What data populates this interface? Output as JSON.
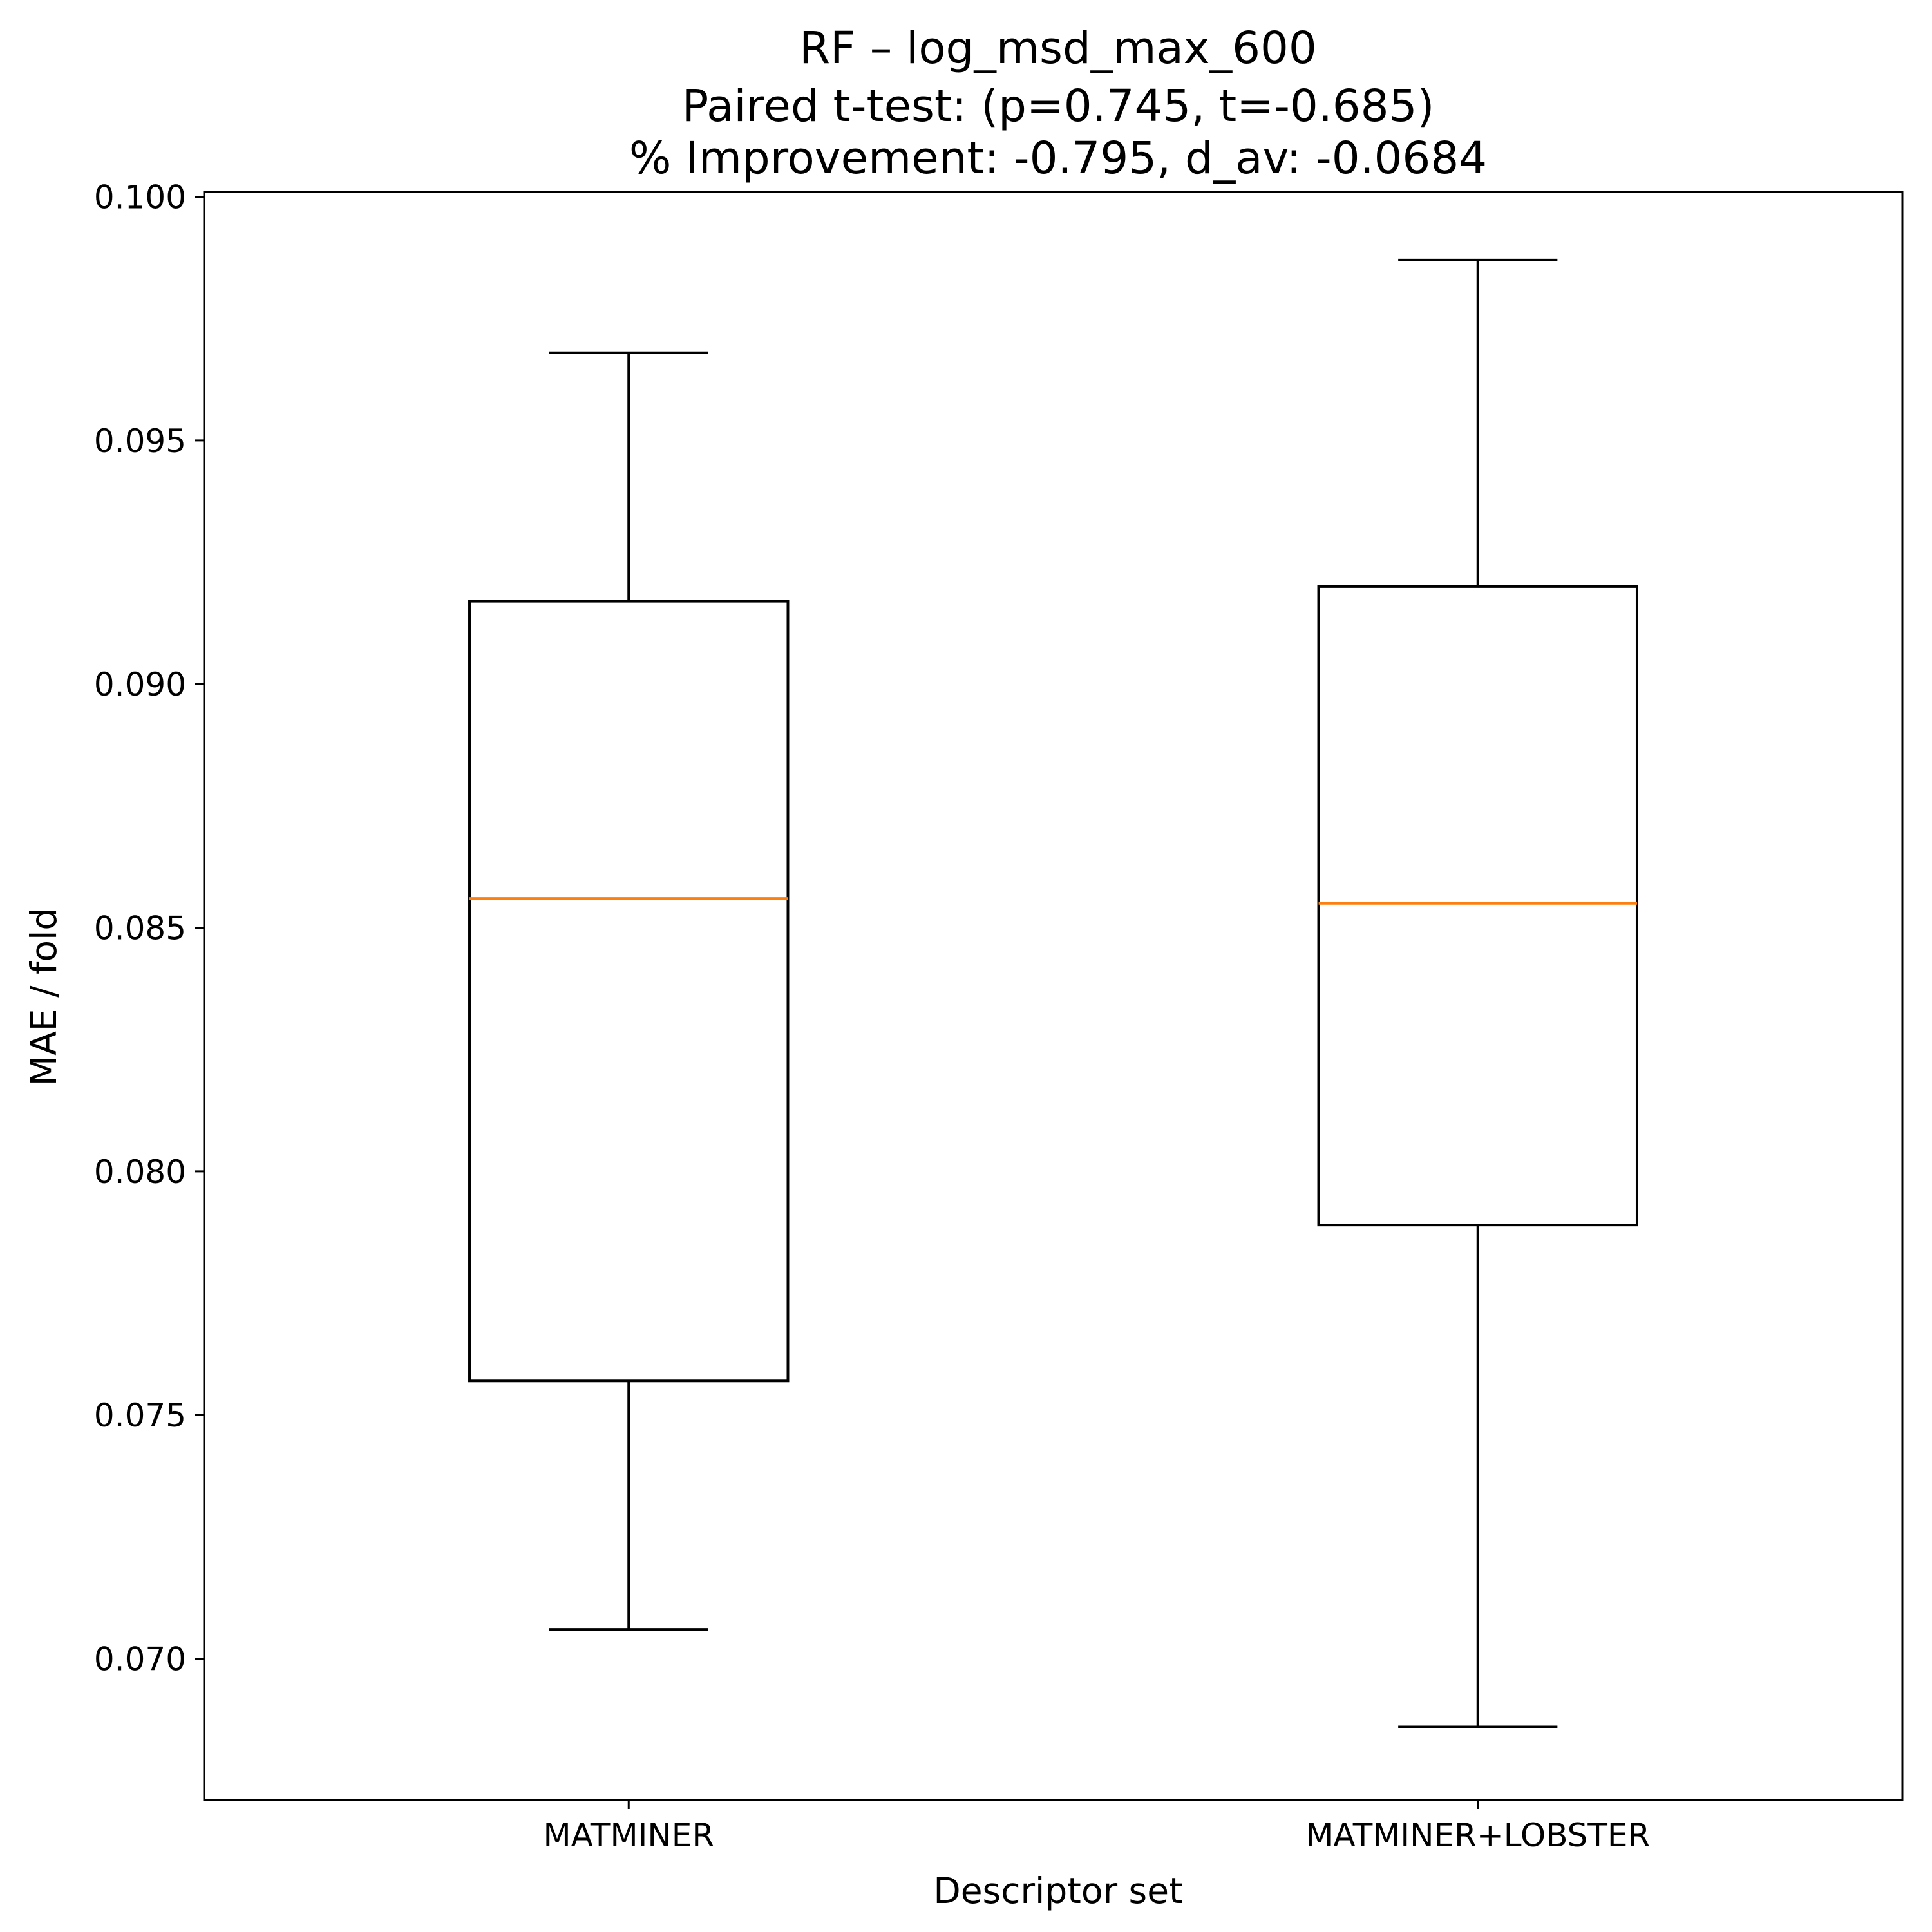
{
  "chart_data": {
    "type": "box",
    "title": "RF – log_msd_max_600",
    "subtitle_lines": [
      "Paired t-test: (p=0.745, t=-0.685)",
      "% Improvement: -0.795, d_av: -0.0684"
    ],
    "xlabel": "Descriptor set",
    "ylabel": "MAE / fold",
    "categories": [
      "MATMINER",
      "MATMINER+LOBSTER"
    ],
    "ylim": [
      0.0671,
      0.1001
    ],
    "yticks": [
      0.07,
      0.075,
      0.08,
      0.085,
      0.09,
      0.095,
      0.1
    ],
    "ytick_labels": [
      "0.070",
      "0.075",
      "0.080",
      "0.085",
      "0.090",
      "0.095",
      "0.100"
    ],
    "grid": false,
    "legend": null,
    "series": [
      {
        "name": "MATMINER",
        "whisker_low": 0.0706,
        "q1": 0.0757,
        "median": 0.0856,
        "q3": 0.0917,
        "whisker_high": 0.0968
      },
      {
        "name": "MATMINER+LOBSTER",
        "whisker_low": 0.0686,
        "q1": 0.0789,
        "median": 0.0855,
        "q3": 0.092,
        "whisker_high": 0.0987
      }
    ],
    "colors": {
      "box": "#000000",
      "median": "#ff7f0e",
      "background": "#ffffff"
    }
  }
}
